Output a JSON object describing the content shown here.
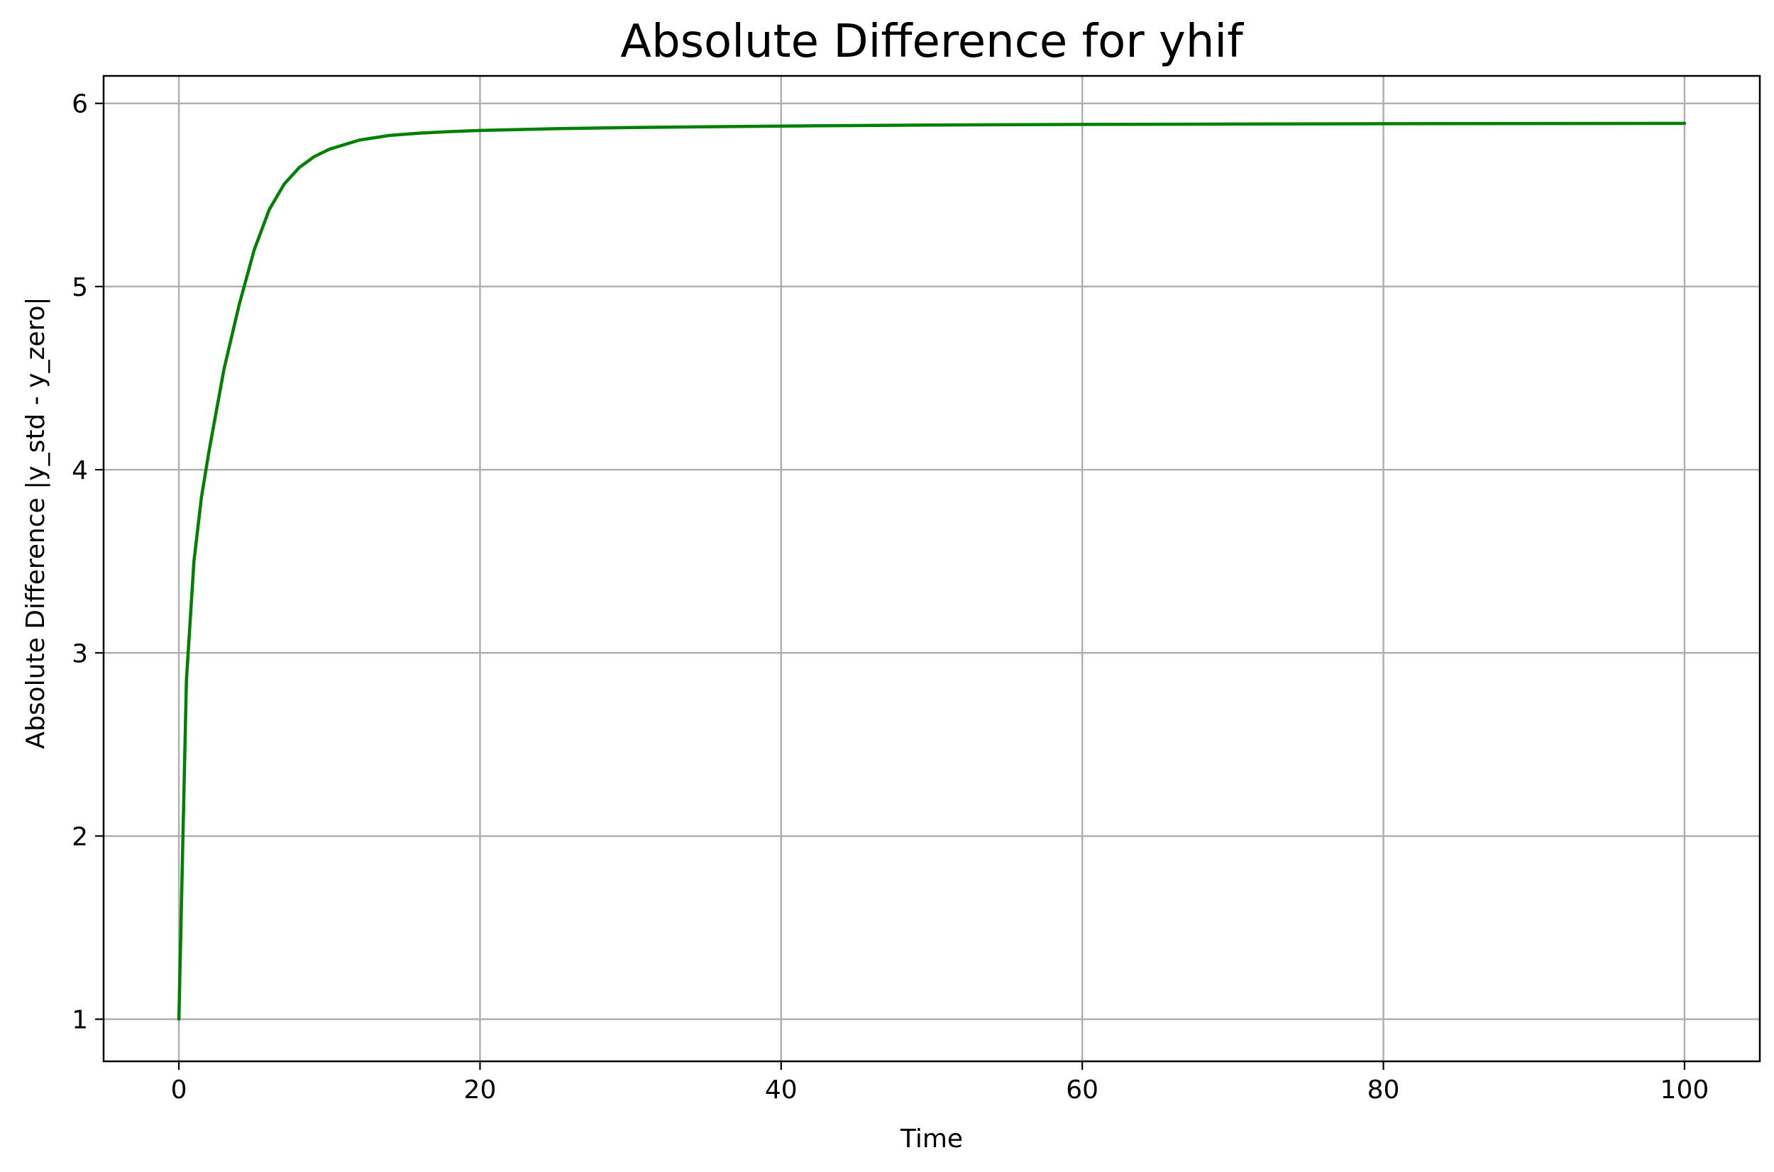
{
  "chart_data": {
    "type": "line",
    "title": "Absolute Difference for yhif",
    "xlabel": "Time",
    "ylabel": "Absolute Difference |y_std - y_zero|",
    "xlim": [
      -5,
      105
    ],
    "ylim": [
      0.77,
      6.15
    ],
    "xticks": [
      0,
      20,
      40,
      60,
      80,
      100
    ],
    "yticks": [
      1,
      2,
      3,
      4,
      5,
      6
    ],
    "grid": true,
    "legend": "none",
    "series": [
      {
        "color": "#008000",
        "x": [
          0,
          0.5,
          1,
          1.5,
          2,
          3,
          4,
          5,
          6,
          7,
          8,
          9,
          10,
          12,
          14,
          16,
          18,
          20,
          25,
          30,
          40,
          50,
          60,
          70,
          80,
          90,
          100
        ],
        "y": [
          1.0,
          2.85,
          3.5,
          3.85,
          4.1,
          4.55,
          4.9,
          5.2,
          5.42,
          5.56,
          5.65,
          5.71,
          5.75,
          5.8,
          5.825,
          5.838,
          5.846,
          5.852,
          5.862,
          5.868,
          5.876,
          5.882,
          5.885,
          5.887,
          5.889,
          5.89,
          5.891
        ]
      }
    ]
  }
}
